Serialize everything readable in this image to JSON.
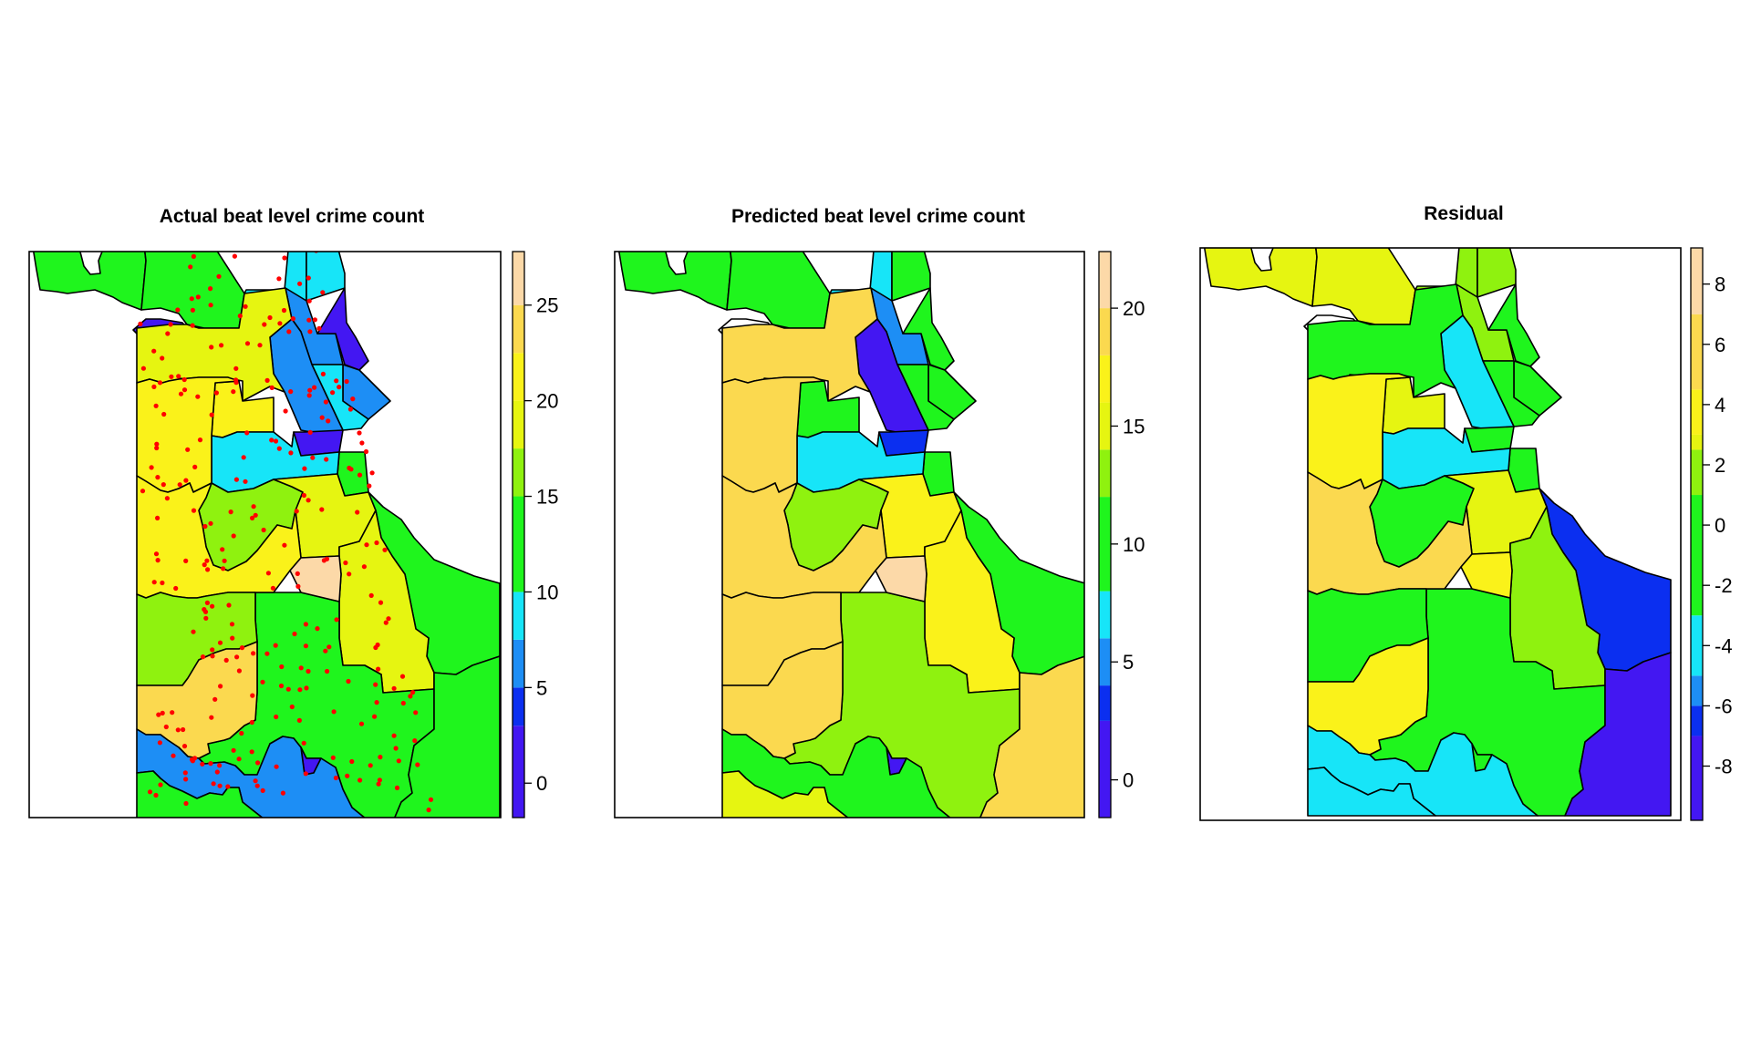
{
  "panels": [
    {
      "title": "Actual beat level crime count",
      "legend": {
        "ticks": [
          "0",
          "5",
          "10",
          "15",
          "20",
          "25"
        ],
        "tick_values": [
          0,
          5,
          10,
          15,
          20,
          25
        ],
        "range": [
          -1.8,
          27.8
        ],
        "bands": [
          {
            "from": -1.8,
            "to": 3,
            "color": "#4317f2"
          },
          {
            "from": 3,
            "to": 5,
            "color": "#0b2ff0"
          },
          {
            "from": 5,
            "to": 7.5,
            "color": "#1d8ef5"
          },
          {
            "from": 7.5,
            "to": 10,
            "color": "#17e5f8"
          },
          {
            "from": 10,
            "to": 15,
            "color": "#1ff51d"
          },
          {
            "from": 15,
            "to": 17.5,
            "color": "#8ff20f"
          },
          {
            "from": 17.5,
            "to": 20,
            "color": "#e6f511"
          },
          {
            "from": 20,
            "to": 22.5,
            "color": "#faf21a"
          },
          {
            "from": 22.5,
            "to": 25,
            "color": "#fbd94f"
          },
          {
            "from": 25,
            "to": 27.8,
            "color": "#fcd9a8"
          }
        ]
      },
      "crime_points_shown": true
    },
    {
      "title": "Predicted beat level crime count",
      "legend": {
        "ticks": [
          "0",
          "5",
          "10",
          "15",
          "20"
        ],
        "tick_values": [
          0,
          5,
          10,
          15,
          20
        ],
        "range": [
          -1.6,
          22.4
        ],
        "bands": [
          {
            "from": -1.6,
            "to": 2.5,
            "color": "#4317f2"
          },
          {
            "from": 2.5,
            "to": 4,
            "color": "#0b2ff0"
          },
          {
            "from": 4,
            "to": 6,
            "color": "#1d8ef5"
          },
          {
            "from": 6,
            "to": 8,
            "color": "#17e5f8"
          },
          {
            "from": 8,
            "to": 12,
            "color": "#1ff51d"
          },
          {
            "from": 12,
            "to": 14,
            "color": "#8ff20f"
          },
          {
            "from": 14,
            "to": 16,
            "color": "#e6f511"
          },
          {
            "from": 16,
            "to": 18,
            "color": "#faf21a"
          },
          {
            "from": 18,
            "to": 20,
            "color": "#fbd94f"
          },
          {
            "from": 20,
            "to": 22.4,
            "color": "#fcd9a8"
          }
        ]
      },
      "crime_points_shown": false
    },
    {
      "title": "Residual",
      "legend": {
        "ticks": [
          "-8",
          "-6",
          "-4",
          "-2",
          "0",
          "2",
          "4",
          "6",
          "8"
        ],
        "tick_values": [
          -8,
          -6,
          -4,
          -2,
          0,
          2,
          4,
          6,
          8
        ],
        "range": [
          -9.8,
          9.2
        ],
        "bands": [
          {
            "from": -9.8,
            "to": -7,
            "color": "#4317f2"
          },
          {
            "from": -7,
            "to": -6,
            "color": "#0b2ff0"
          },
          {
            "from": -6,
            "to": -5,
            "color": "#1d8ef5"
          },
          {
            "from": -5,
            "to": -3,
            "color": "#17e5f8"
          },
          {
            "from": -3,
            "to": 1,
            "color": "#1ff51d"
          },
          {
            "from": 1,
            "to": 2.5,
            "color": "#8ff20f"
          },
          {
            "from": 2.5,
            "to": 3,
            "color": "#e6f511"
          },
          {
            "from": 3,
            "to": 4.5,
            "color": "#faf21a"
          },
          {
            "from": 4.5,
            "to": 7,
            "color": "#fbd94f"
          },
          {
            "from": 7,
            "to": 9.2,
            "color": "#fcd9a8"
          }
        ]
      },
      "crime_points_shown": false
    }
  ],
  "district_values": [
    {
      "actual": 13,
      "predicted": 11,
      "residual": 2.8
    },
    {
      "actual": 1,
      "predicted": null,
      "residual": null
    },
    {
      "actual": 11,
      "predicted": 11,
      "residual": 2.8
    },
    {
      "actual": 9,
      "predicted": 7,
      "residual": 1
    },
    {
      "actual": 9,
      "predicted": 7,
      "residual": 1.5
    },
    {
      "actual": 9,
      "predicted": 11,
      "residual": 1.5
    },
    {
      "actual": 6,
      "predicted": 4,
      "residual": 1.5
    },
    {
      "actual": 2,
      "predicted": 11,
      "residual": -1
    },
    {
      "actual": 6,
      "predicted": 11,
      "residual": -1
    },
    {
      "actual": 9,
      "predicted": 11,
      "residual": -1
    },
    {
      "actual": 6,
      "predicted": 2,
      "residual": -4
    },
    {
      "actual": 18,
      "predicted": 19,
      "residual": -1
    },
    {
      "actual": 21,
      "predicted": 11,
      "residual": 2.5
    },
    {
      "actual": 2,
      "predicted": 3,
      "residual": 0
    },
    {
      "actual": 11,
      "predicted": 11,
      "residual": 0
    },
    {
      "actual": 8,
      "predicted": 7,
      "residual": -4
    },
    {
      "actual": 21,
      "predicted": 19,
      "residual": 3
    },
    {
      "actual": 16,
      "predicted": 13,
      "residual": 0
    },
    {
      "actual": 18,
      "predicted": 17,
      "residual": 2.5
    },
    {
      "actual": 11,
      "predicted": 11,
      "residual": -6.5
    },
    {
      "actual": 19,
      "predicted": 17,
      "residual": 1.5
    },
    {
      "actual": 1,
      "predicted": 2,
      "residual": 1.5
    },
    {
      "actual": 11,
      "predicted": 13,
      "residual": -1
    },
    {
      "actual": 2,
      "predicted": 2,
      "residual": -1
    },
    {
      "actual": 21,
      "predicted": 19,
      "residual": 5
    },
    {
      "actual": 26,
      "predicted": 21,
      "residual": 4
    },
    {
      "actual": 16,
      "predicted": 19,
      "residual": -1
    },
    {
      "actual": 24,
      "predicted": 19,
      "residual": 3
    },
    {
      "actual": 6,
      "predicted": 11,
      "residual": -4
    },
    {
      "actual": 11,
      "predicted": 15,
      "residual": -4
    },
    {
      "actual": 11,
      "predicted": 19,
      "residual": -9
    }
  ]
}
